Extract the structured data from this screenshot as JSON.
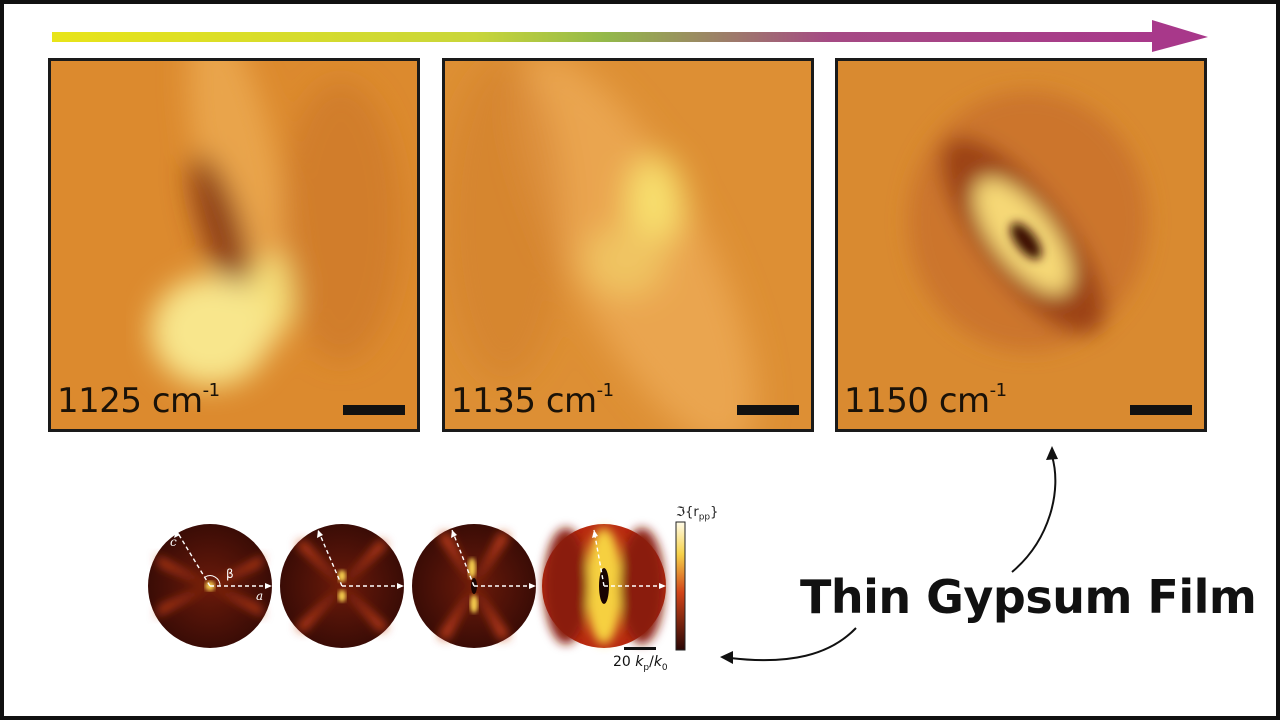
{
  "panels": [
    {
      "label": "1125 cm",
      "sup": "-1"
    },
    {
      "label": "1135 cm",
      "sup": "-1"
    },
    {
      "label": "1150 cm",
      "sup": "-1"
    }
  ],
  "colorbar": {
    "label": "ℑ{r",
    "sub": "pp",
    "end": "}"
  },
  "axis_labels": {
    "c": "c",
    "a": "a",
    "beta": "β"
  },
  "scale": {
    "value": "20 ",
    "k1": "k",
    "k1_sub": "p",
    "slash": "/",
    "k2": "k",
    "k2_sub": "0"
  },
  "caption": "Thin Gypsum Film",
  "colors": {
    "arrow_start": "#e6e000",
    "arrow_mid": "#a8c43a",
    "arrow_end": "#b03a8c"
  }
}
